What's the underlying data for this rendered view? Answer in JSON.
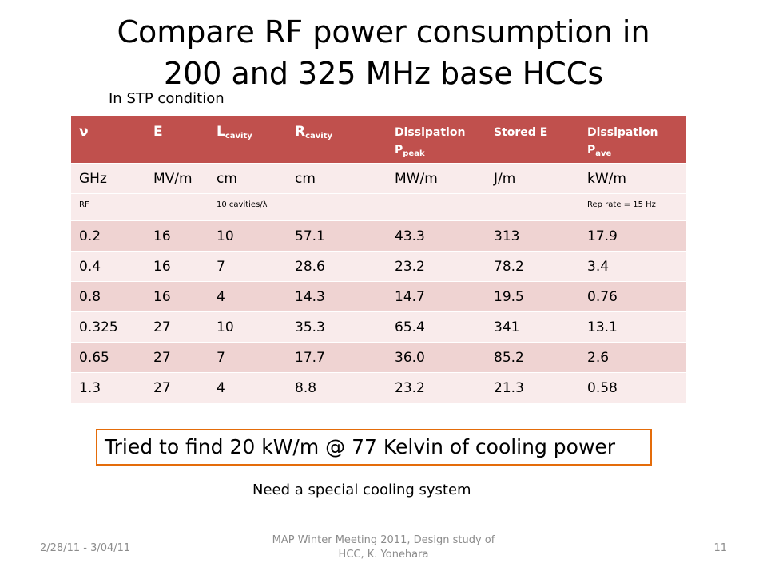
{
  "slide": {
    "title_line1": "Compare RF power consumption in",
    "title_line2": "200 and 325 MHz base HCCs",
    "condition": "In STP condition",
    "callout": "Tried to find 20 kW/m @ 77 Kelvin of cooling power",
    "note": "Need a special cooling system"
  },
  "table": {
    "headers": [
      {
        "main": "ν",
        "sub": ""
      },
      {
        "main": "E",
        "sub": ""
      },
      {
        "main": "L",
        "sub": "cavity"
      },
      {
        "main": "R",
        "sub": "cavity"
      },
      {
        "line1": "Dissipation",
        "main": "P",
        "sub": "peak"
      },
      {
        "main": "Stored E",
        "sub": ""
      },
      {
        "line1": "Dissipation",
        "main": "P",
        "sub": "ave"
      }
    ],
    "units": [
      "GHz",
      "MV/m",
      "cm",
      "cm",
      "MW/m",
      "J/m",
      "kW/m"
    ],
    "notes": [
      "RF",
      "",
      "10 cavities/λ",
      "",
      "",
      "",
      "Rep rate = 15 Hz"
    ],
    "rows": [
      [
        "0.2",
        "16",
        "10",
        "57.1",
        "43.3",
        "313",
        "17.9"
      ],
      [
        "0.4",
        "16",
        "7",
        "28.6",
        "23.2",
        "78.2",
        "3.4"
      ],
      [
        "0.8",
        "16",
        "4",
        "14.3",
        "14.7",
        "19.5",
        "0.76"
      ],
      [
        "0.325",
        "27",
        "10",
        "35.3",
        "65.4",
        "341",
        "13.1"
      ],
      [
        "0.65",
        "27",
        "7",
        "17.7",
        "36.0",
        "85.2",
        "2.6"
      ],
      [
        "1.3",
        "27",
        "4",
        "8.8",
        "23.2",
        "21.3",
        "0.58"
      ]
    ]
  },
  "footer": {
    "date": "2/28/11 - 3/04/11",
    "center": "MAP Winter Meeting 2011, Design study of HCC, K. Yonehara",
    "page": "11"
  },
  "colors": {
    "header_bg": "#c0504d",
    "row_odd": "#efd3d2",
    "row_even": "#f9ebeb",
    "callout_border": "#e46c0a"
  }
}
